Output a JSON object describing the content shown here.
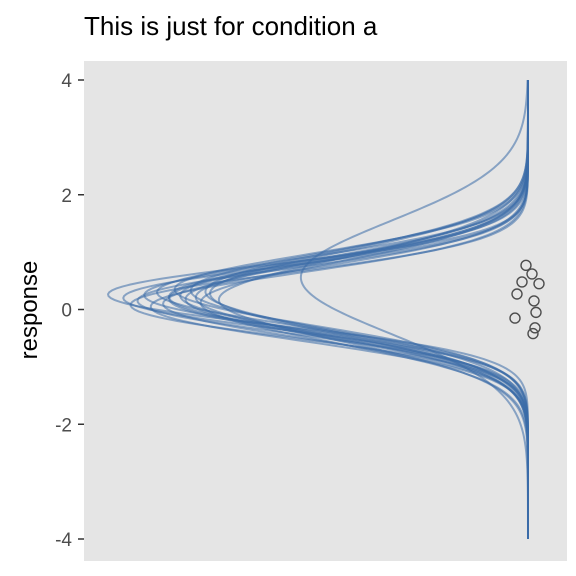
{
  "chart_data": {
    "type": "line",
    "title": "This is just for condition a",
    "xlabel": "",
    "ylabel": "response",
    "ylim": [
      -4,
      4
    ],
    "yticks": [
      4,
      2,
      0,
      -2,
      -4
    ],
    "ytick_labels": [
      "4",
      "2",
      "0",
      "-2",
      "-4"
    ],
    "grid": false,
    "panel_background": "#e5e5e5",
    "line_color": "#3a6ca8",
    "point_color": "#4d4d4d",
    "description": "Posterior predictive normal densities drawn horizontally (mirrored, extending left) for condition a",
    "density_draws": [
      {
        "mu": 0.22,
        "sigma": 0.62
      },
      {
        "mu": 0.25,
        "sigma": 0.58
      },
      {
        "mu": 0.18,
        "sigma": 0.65
      },
      {
        "mu": 0.3,
        "sigma": 0.6
      },
      {
        "mu": 0.12,
        "sigma": 0.68
      },
      {
        "mu": 0.2,
        "sigma": 0.55
      },
      {
        "mu": 0.28,
        "sigma": 0.7
      },
      {
        "mu": 0.15,
        "sigma": 0.57
      },
      {
        "mu": 0.24,
        "sigma": 0.64
      },
      {
        "mu": 0.1,
        "sigma": 0.61
      },
      {
        "mu": 0.33,
        "sigma": 0.66
      },
      {
        "mu": 0.17,
        "sigma": 0.72
      },
      {
        "mu": 0.26,
        "sigma": 0.53
      },
      {
        "mu": 0.05,
        "sigma": 0.59
      },
      {
        "mu": 0.35,
        "sigma": 0.63
      },
      {
        "mu": 0.56,
        "sigma": 0.98
      },
      {
        "mu": 0.19,
        "sigma": 0.62
      },
      {
        "mu": 0.21,
        "sigma": 0.67
      },
      {
        "mu": 0.08,
        "sigma": 0.56
      },
      {
        "mu": 0.31,
        "sigma": 0.69
      }
    ],
    "observations": [
      0.77,
      0.62,
      0.48,
      0.45,
      0.27,
      0.15,
      -0.05,
      -0.15,
      -0.32,
      -0.42
    ]
  }
}
